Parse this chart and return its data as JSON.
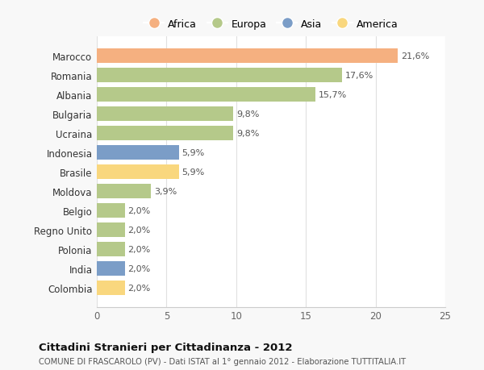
{
  "countries": [
    "Colombia",
    "India",
    "Polonia",
    "Regno Unito",
    "Belgio",
    "Moldova",
    "Brasile",
    "Indonesia",
    "Ucraina",
    "Bulgaria",
    "Albania",
    "Romania",
    "Marocco"
  ],
  "values": [
    2.0,
    2.0,
    2.0,
    2.0,
    2.0,
    3.9,
    5.9,
    5.9,
    9.8,
    9.8,
    15.7,
    17.6,
    21.6
  ],
  "labels": [
    "2,0%",
    "2,0%",
    "2,0%",
    "2,0%",
    "2,0%",
    "3,9%",
    "5,9%",
    "5,9%",
    "9,8%",
    "9,8%",
    "15,7%",
    "17,6%",
    "21,6%"
  ],
  "colors": [
    "#f9d77e",
    "#7b9dc7",
    "#b5c98a",
    "#b5c98a",
    "#b5c98a",
    "#b5c98a",
    "#f9d77e",
    "#7b9dc7",
    "#b5c98a",
    "#b5c98a",
    "#b5c98a",
    "#b5c98a",
    "#f5b080"
  ],
  "legend_labels": [
    "Africa",
    "Europa",
    "Asia",
    "America"
  ],
  "legend_colors": [
    "#f5b080",
    "#b5c98a",
    "#7b9dc7",
    "#f9d77e"
  ],
  "title": "Cittadini Stranieri per Cittadinanza - 2012",
  "subtitle": "COMUNE DI FRASCAROLO (PV) - Dati ISTAT al 1° gennaio 2012 - Elaborazione TUTTITALIA.IT",
  "xlim": [
    0,
    25
  ],
  "background_color": "#f8f8f8",
  "plot_bg_color": "#ffffff"
}
